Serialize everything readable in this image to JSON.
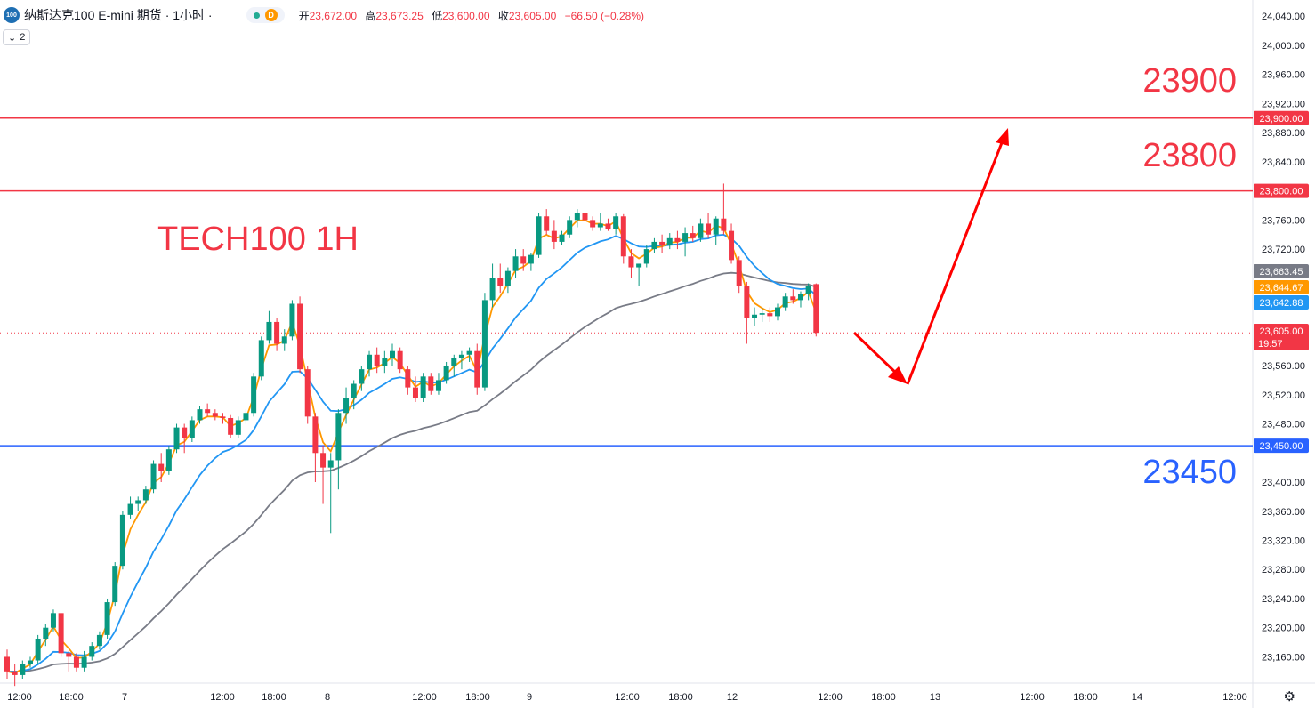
{
  "header": {
    "logo_text": "100",
    "symbol": "纳斯达克100 E-mini 期货 · 1小时 ·",
    "d_badge": "D",
    "ohlc": {
      "open_label": "开",
      "open": "23,672.00",
      "high_label": "高",
      "high": "23,673.25",
      "low_label": "低",
      "low": "23,600.00",
      "close_label": "收",
      "close": "23,605.00",
      "change": "−66.50 (−0.28%)"
    },
    "indicator_toggle": "2"
  },
  "annotations": {
    "title": "TECH100 1H",
    "level_23900": "23900",
    "level_23800": "23800",
    "level_23450": "23450"
  },
  "chart_data": {
    "type": "candlestick",
    "y_range": [
      23130,
      24050
    ],
    "y_ticks": [
      "24,040.00",
      "24,000.00",
      "23,960.00",
      "23,920.00",
      "23,880.00",
      "23,840.00",
      "23,760.00",
      "23,720.00",
      "23,560.00",
      "23,520.00",
      "23,480.00",
      "23,400.00",
      "23,360.00",
      "23,320.00",
      "23,280.00",
      "23,240.00",
      "23,200.00",
      "23,160.00"
    ],
    "x_ticks": [
      "12:00",
      "18:00",
      "7",
      "12:00",
      "18:00",
      "8",
      "12:00",
      "18:00",
      "9",
      "12:00",
      "18:00",
      "12",
      "12:00",
      "18:00",
      "13",
      "12:00",
      "18:00",
      "14",
      "12:00"
    ],
    "horizontal_lines": [
      {
        "value": 23900,
        "color": "#f23645",
        "label": "23,900.00"
      },
      {
        "value": 23800,
        "color": "#f23645",
        "label": "23,800.00"
      },
      {
        "value": 23450,
        "color": "#2962ff",
        "label": "23,450.00"
      }
    ],
    "price_tags": [
      {
        "value": 23663.45,
        "label": "23,663.45",
        "color": "#787b86"
      },
      {
        "value": 23644.67,
        "label": "23,644.67",
        "color": "#ff9800"
      },
      {
        "value": 23642.88,
        "label": "23,642.88",
        "color": "#2196f3"
      },
      {
        "value": 23605.0,
        "label": "23,605.00",
        "sub": "19:57",
        "color": "#f23645"
      }
    ],
    "last_price": 23605,
    "candles": [
      [
        23160,
        23170,
        23130,
        23140
      ],
      [
        23140,
        23150,
        23120,
        23135
      ],
      [
        23135,
        23155,
        23130,
        23150
      ],
      [
        23150,
        23160,
        23145,
        23155
      ],
      [
        23155,
        23190,
        23150,
        23185
      ],
      [
        23185,
        23205,
        23175,
        23200
      ],
      [
        23200,
        23225,
        23195,
        23220
      ],
      [
        23220,
        23220,
        23160,
        23165
      ],
      [
        23165,
        23168,
        23140,
        23160
      ],
      [
        23160,
        23165,
        23140,
        23145
      ],
      [
        23145,
        23168,
        23140,
        23160
      ],
      [
        23160,
        23180,
        23155,
        23175
      ],
      [
        23175,
        23195,
        23170,
        23190
      ],
      [
        23190,
        23240,
        23185,
        23235
      ],
      [
        23235,
        23290,
        23230,
        23285
      ],
      [
        23285,
        23360,
        23280,
        23355
      ],
      [
        23355,
        23380,
        23350,
        23370
      ],
      [
        23370,
        23380,
        23360,
        23375
      ],
      [
        23375,
        23395,
        23370,
        23390
      ],
      [
        23390,
        23430,
        23385,
        23425
      ],
      [
        23425,
        23440,
        23400,
        23415
      ],
      [
        23415,
        23450,
        23410,
        23445
      ],
      [
        23445,
        23480,
        23440,
        23475
      ],
      [
        23475,
        23480,
        23440,
        23460
      ],
      [
        23460,
        23490,
        23455,
        23485
      ],
      [
        23485,
        23505,
        23480,
        23500
      ],
      [
        23500,
        23508,
        23490,
        23495
      ],
      [
        23495,
        23500,
        23485,
        23490
      ],
      [
        23490,
        23495,
        23480,
        23488
      ],
      [
        23488,
        23492,
        23460,
        23465
      ],
      [
        23465,
        23490,
        23460,
        23485
      ],
      [
        23485,
        23500,
        23480,
        23495
      ],
      [
        23495,
        23550,
        23490,
        23545
      ],
      [
        23545,
        23600,
        23540,
        23595
      ],
      [
        23595,
        23635,
        23590,
        23620
      ],
      [
        23620,
        23625,
        23580,
        23590
      ],
      [
        23590,
        23610,
        23580,
        23600
      ],
      [
        23600,
        23650,
        23595,
        23645
      ],
      [
        23645,
        23655,
        23550,
        23555
      ],
      [
        23555,
        23560,
        23480,
        23490
      ],
      [
        23490,
        23495,
        23400,
        23440
      ],
      [
        23440,
        23450,
        23370,
        23420
      ],
      [
        23420,
        23440,
        23330,
        23430
      ],
      [
        23430,
        23500,
        23390,
        23495
      ],
      [
        23495,
        23530,
        23480,
        23515
      ],
      [
        23515,
        23540,
        23500,
        23535
      ],
      [
        23535,
        23560,
        23525,
        23555
      ],
      [
        23555,
        23580,
        23545,
        23575
      ],
      [
        23575,
        23585,
        23550,
        23560
      ],
      [
        23560,
        23580,
        23550,
        23570
      ],
      [
        23570,
        23590,
        23560,
        23580
      ],
      [
        23580,
        23585,
        23550,
        23555
      ],
      [
        23555,
        23560,
        23520,
        23530
      ],
      [
        23530,
        23545,
        23510,
        23515
      ],
      [
        23515,
        23550,
        23510,
        23545
      ],
      [
        23545,
        23550,
        23520,
        23525
      ],
      [
        23525,
        23550,
        23520,
        23540
      ],
      [
        23540,
        23565,
        23535,
        23560
      ],
      [
        23560,
        23575,
        23545,
        23570
      ],
      [
        23570,
        23580,
        23555,
        23575
      ],
      [
        23575,
        23585,
        23565,
        23580
      ],
      [
        23580,
        23590,
        23520,
        23530
      ],
      [
        23530,
        23660,
        23525,
        23650
      ],
      [
        23650,
        23700,
        23640,
        23680
      ],
      [
        23680,
        23700,
        23660,
        23670
      ],
      [
        23670,
        23695,
        23660,
        23690
      ],
      [
        23690,
        23720,
        23680,
        23710
      ],
      [
        23710,
        23720,
        23690,
        23700
      ],
      [
        23700,
        23715,
        23690,
        23712
      ],
      [
        23712,
        23770,
        23708,
        23765
      ],
      [
        23765,
        23775,
        23740,
        23745
      ],
      [
        23745,
        23760,
        23720,
        23730
      ],
      [
        23730,
        23745,
        23725,
        23740
      ],
      [
        23740,
        23765,
        23735,
        23760
      ],
      [
        23760,
        23775,
        23750,
        23770
      ],
      [
        23770,
        23775,
        23755,
        23760
      ],
      [
        23760,
        23765,
        23745,
        23750
      ],
      [
        23750,
        23770,
        23745,
        23755
      ],
      [
        23755,
        23762,
        23745,
        23748
      ],
      [
        23748,
        23770,
        23740,
        23765
      ],
      [
        23765,
        23768,
        23700,
        23710
      ],
      [
        23710,
        23720,
        23680,
        23695
      ],
      [
        23695,
        23700,
        23670,
        23700
      ],
      [
        23700,
        23725,
        23695,
        23720
      ],
      [
        23720,
        23735,
        23715,
        23730
      ],
      [
        23730,
        23740,
        23715,
        23725
      ],
      [
        23725,
        23742,
        23720,
        23735
      ],
      [
        23735,
        23745,
        23720,
        23730
      ],
      [
        23730,
        23750,
        23710,
        23742
      ],
      [
        23742,
        23752,
        23730,
        23735
      ],
      [
        23735,
        23762,
        23730,
        23755
      ],
      [
        23755,
        23770,
        23735,
        23740
      ],
      [
        23740,
        23765,
        23725,
        23762
      ],
      [
        23762,
        23810,
        23740,
        23745
      ],
      [
        23745,
        23755,
        23700,
        23705
      ],
      [
        23705,
        23710,
        23660,
        23670
      ],
      [
        23670,
        23675,
        23590,
        23625
      ],
      [
        23625,
        23640,
        23615,
        23630
      ],
      [
        23630,
        23640,
        23620,
        23632
      ],
      [
        23632,
        23640,
        23620,
        23628
      ],
      [
        23628,
        23645,
        23622,
        23640
      ],
      [
        23640,
        23660,
        23635,
        23655
      ],
      [
        23655,
        23665,
        23645,
        23650
      ],
      [
        23650,
        23662,
        23640,
        23658
      ],
      [
        23658,
        23673,
        23650,
        23670
      ],
      [
        23672,
        23673,
        23600,
        23605
      ]
    ],
    "ema_fast_color": "#ff9800",
    "ema_mid_color": "#2196f3",
    "ma_slow_color": "#787b86",
    "projection_color": "#ff0000"
  }
}
